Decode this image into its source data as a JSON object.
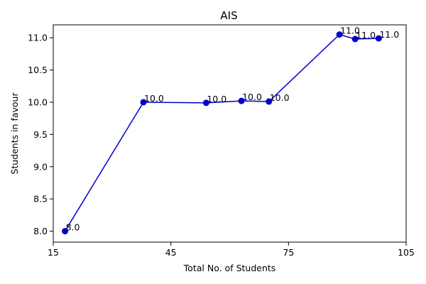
{
  "chart_data": {
    "type": "line",
    "title": "AIS",
    "xlabel": "Total No. of Students",
    "ylabel": "Students in favour",
    "x": [
      18,
      38,
      54,
      63,
      70,
      88,
      92,
      98
    ],
    "series": [
      {
        "values": [
          8.0,
          10.0,
          9.99,
          10.02,
          10.01,
          11.05,
          10.98,
          10.99
        ],
        "data_labels": [
          "8.0",
          "10.0",
          "10.0",
          "10.0",
          "10.0",
          "11.0",
          "11.0",
          "11.0"
        ],
        "color": "#0000cc",
        "marker": "circle"
      }
    ],
    "xlim": [
      15,
      105
    ],
    "ylim": [
      7.83,
      11.2
    ],
    "xticks": [
      15,
      45,
      75,
      105
    ],
    "yticks": [
      8.0,
      8.5,
      9.0,
      9.5,
      10.0,
      10.5,
      11.0
    ],
    "xtick_labels": [
      "15",
      "45",
      "75",
      "105"
    ],
    "ytick_labels": [
      "8.0",
      "8.5",
      "9.0",
      "9.5",
      "10.0",
      "10.5",
      "11.0"
    ],
    "grid": false,
    "legend": false
  }
}
